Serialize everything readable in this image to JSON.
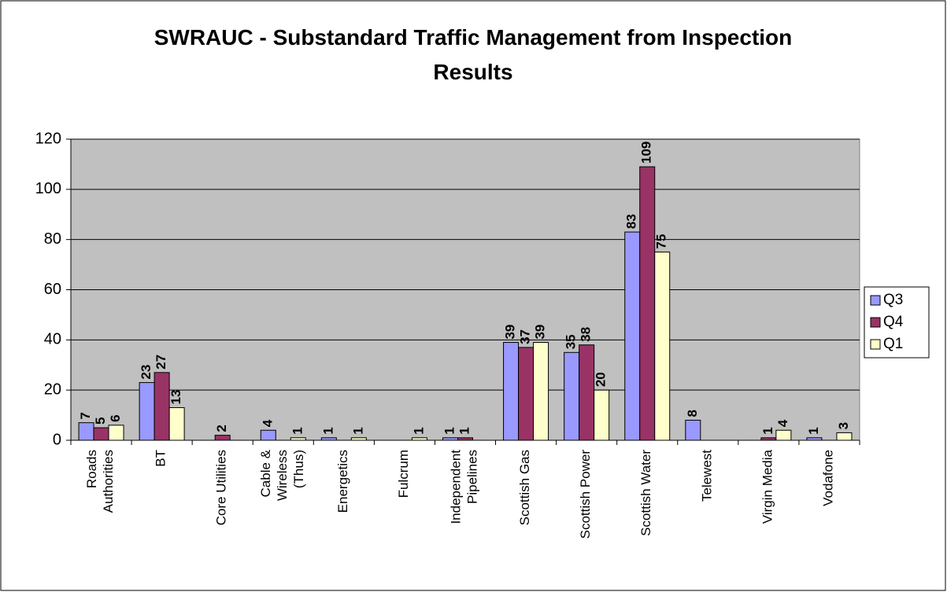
{
  "chart_data": {
    "type": "bar",
    "title": "SWRAUC - Substandard Traffic Management from Inspection Results",
    "categories": [
      "Roads Authorities",
      "BT",
      "Core Utilities",
      "Cable & Wireless (Thus)",
      "Energetics",
      "Fulcrum",
      "Independent Pipelines",
      "Scottish Gas",
      "Scottish Power",
      "Scottish Water",
      "Telewest",
      "Virgin Media",
      "Vodafone"
    ],
    "series": [
      {
        "name": "Q3",
        "color": "#9999ff",
        "values": [
          7,
          23,
          null,
          4,
          1,
          null,
          1,
          39,
          35,
          83,
          8,
          null,
          1
        ]
      },
      {
        "name": "Q4",
        "color": "#993366",
        "values": [
          5,
          27,
          2,
          null,
          null,
          null,
          1,
          37,
          38,
          109,
          null,
          1,
          null
        ]
      },
      {
        "name": "Q1",
        "color": "#ffffcc",
        "values": [
          6,
          13,
          null,
          1,
          1,
          1,
          null,
          39,
          20,
          75,
          null,
          4,
          3
        ]
      }
    ],
    "ylim": [
      0,
      120
    ],
    "yticks": [
      0,
      20,
      40,
      60,
      80,
      100,
      120
    ],
    "grid": true,
    "legend": "right"
  }
}
